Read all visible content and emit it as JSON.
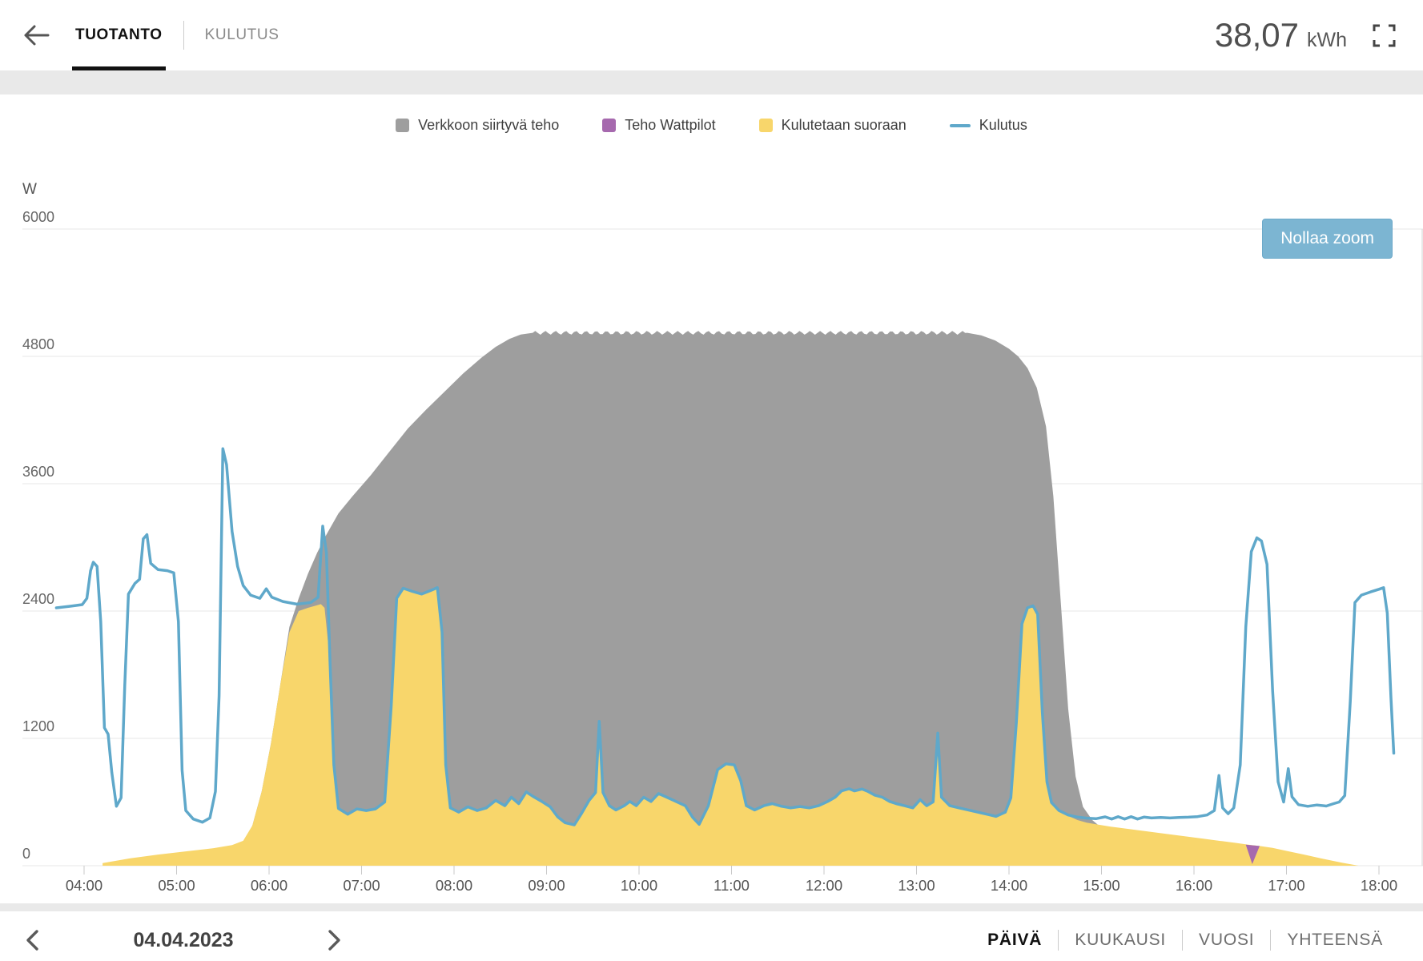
{
  "header": {
    "tabs": [
      {
        "label": "TUOTANTO",
        "active": true
      },
      {
        "label": "KULUTUS",
        "active": false
      }
    ],
    "energy_value": "38,07",
    "energy_unit": "kWh"
  },
  "legend": [
    {
      "label": "Verkkoon siirtyvä teho",
      "color": "#9e9e9e",
      "marker": "square"
    },
    {
      "label": "Teho Wattpilot",
      "color": "#a669ae",
      "marker": "square"
    },
    {
      "label": "Kulutetaan suoraan",
      "color": "#f8d66b",
      "marker": "square"
    },
    {
      "label": "Kulutus",
      "color": "#5fa8ca",
      "marker": "line"
    }
  ],
  "reset_zoom_label": "Nollaa zoom",
  "footer": {
    "date": "04.04.2023",
    "views": [
      {
        "label": "PÄIVÄ",
        "active": true
      },
      {
        "label": "KUUKAUSI",
        "active": false
      },
      {
        "label": "VUOSI",
        "active": false
      },
      {
        "label": "YHTEENSÄ",
        "active": false
      }
    ]
  },
  "chart_data": {
    "type": "area",
    "title": "",
    "unit": "W",
    "ylabel": "W",
    "ylim": [
      0,
      6000
    ],
    "y_ticks": [
      0,
      1200,
      2400,
      3600,
      4800,
      6000
    ],
    "x_hours": [
      4,
      5,
      6,
      7,
      8,
      9,
      10,
      11,
      12,
      13,
      14,
      15,
      16,
      17,
      18
    ],
    "x_tick_labels": [
      "04:00",
      "05:00",
      "06:00",
      "07:00",
      "08:00",
      "09:00",
      "10:00",
      "11:00",
      "12:00",
      "13:00",
      "14:00",
      "15:00",
      "16:00",
      "17:00",
      "18:00"
    ],
    "xlim": [
      3.65,
      18.45
    ],
    "grid": true,
    "legend_position": "top-center",
    "cap_ripple": {
      "from": 8.85,
      "to": 13.55,
      "amplitude": 18,
      "period": 0.11,
      "base": 5022
    },
    "series": {
      "production_total": {
        "label": "Verkkoon siirtyvä teho",
        "color": "#9e9e9e",
        "note": "stack top = total PV production; gray band is power exported to grid, drawn above direct use",
        "points": [
          [
            5.72,
            120
          ],
          [
            5.82,
            380
          ],
          [
            5.92,
            700
          ],
          [
            6.02,
            1150
          ],
          [
            6.12,
            1700
          ],
          [
            6.22,
            2250
          ],
          [
            6.32,
            2520
          ],
          [
            6.42,
            2750
          ],
          [
            6.52,
            2950
          ],
          [
            6.62,
            3120
          ],
          [
            6.75,
            3320
          ],
          [
            6.9,
            3480
          ],
          [
            7.1,
            3680
          ],
          [
            7.3,
            3900
          ],
          [
            7.5,
            4120
          ],
          [
            7.7,
            4300
          ],
          [
            7.9,
            4470
          ],
          [
            8.1,
            4640
          ],
          [
            8.3,
            4790
          ],
          [
            8.45,
            4890
          ],
          [
            8.6,
            4965
          ],
          [
            8.72,
            5005
          ],
          [
            8.85,
            5022
          ],
          [
            13.55,
            5022
          ],
          [
            13.7,
            4998
          ],
          [
            13.85,
            4950
          ],
          [
            14.0,
            4872
          ],
          [
            14.1,
            4800
          ],
          [
            14.2,
            4690
          ],
          [
            14.3,
            4505
          ],
          [
            14.4,
            4140
          ],
          [
            14.48,
            3480
          ],
          [
            14.56,
            2480
          ],
          [
            14.64,
            1480
          ],
          [
            14.72,
            840
          ],
          [
            14.8,
            555
          ],
          [
            14.9,
            430
          ],
          [
            15.0,
            358
          ]
        ]
      },
      "wattpilot": {
        "label": "Teho Wattpilot",
        "color": "#a669ae",
        "points": [
          [
            16.56,
            198
          ],
          [
            16.63,
            15
          ],
          [
            16.71,
            186
          ]
        ]
      },
      "direct_use": {
        "label": "Kulutetaan suoraan",
        "color": "#f8d66b",
        "points_head": [
          [
            4.2,
            25
          ],
          [
            4.5,
            70
          ],
          [
            4.8,
            105
          ],
          [
            5.1,
            135
          ],
          [
            5.4,
            165
          ],
          [
            5.6,
            195
          ],
          [
            5.72,
            235
          ],
          [
            5.82,
            380
          ],
          [
            5.92,
            700
          ],
          [
            6.02,
            1150
          ],
          [
            6.12,
            1700
          ],
          [
            6.22,
            2200
          ],
          [
            6.32,
            2400
          ],
          [
            6.42,
            2430
          ],
          [
            6.5,
            2450
          ],
          [
            6.56,
            2465
          ],
          [
            6.6,
            2430
          ],
          [
            6.65,
            2000
          ],
          [
            6.7,
            950
          ],
          [
            6.75,
            540
          ]
        ],
        "follows_consumption": [
          6.76,
          14.47
        ],
        "points_tail": [
          [
            14.54,
            520
          ],
          [
            14.64,
            470
          ],
          [
            14.74,
            430
          ],
          [
            14.84,
            405
          ],
          [
            14.94,
            390
          ],
          [
            15.1,
            368
          ],
          [
            15.3,
            345
          ],
          [
            15.5,
            322
          ],
          [
            15.7,
            300
          ],
          [
            15.9,
            278
          ],
          [
            16.1,
            255
          ],
          [
            16.3,
            232
          ],
          [
            16.45,
            215
          ],
          [
            16.55,
            203
          ],
          [
            16.63,
            193
          ],
          [
            16.71,
            186
          ],
          [
            16.85,
            168
          ],
          [
            17.0,
            140
          ],
          [
            17.2,
            103
          ],
          [
            17.4,
            64
          ],
          [
            17.6,
            28
          ],
          [
            17.78,
            0
          ]
        ]
      },
      "consumption": {
        "label": "Kulutus",
        "color": "#5fa8ca",
        "points": [
          [
            3.7,
            2430
          ],
          [
            3.85,
            2445
          ],
          [
            3.98,
            2460
          ],
          [
            4.03,
            2520
          ],
          [
            4.07,
            2780
          ],
          [
            4.1,
            2860
          ],
          [
            4.14,
            2820
          ],
          [
            4.18,
            2300
          ],
          [
            4.22,
            1300
          ],
          [
            4.26,
            1240
          ],
          [
            4.3,
            880
          ],
          [
            4.35,
            560
          ],
          [
            4.4,
            640
          ],
          [
            4.44,
            1700
          ],
          [
            4.48,
            2560
          ],
          [
            4.55,
            2660
          ],
          [
            4.6,
            2700
          ],
          [
            4.64,
            3080
          ],
          [
            4.68,
            3120
          ],
          [
            4.72,
            2850
          ],
          [
            4.8,
            2790
          ],
          [
            4.9,
            2780
          ],
          [
            4.97,
            2760
          ],
          [
            5.02,
            2300
          ],
          [
            5.06,
            900
          ],
          [
            5.1,
            520
          ],
          [
            5.18,
            440
          ],
          [
            5.28,
            410
          ],
          [
            5.36,
            450
          ],
          [
            5.42,
            700
          ],
          [
            5.46,
            1600
          ],
          [
            5.5,
            3930
          ],
          [
            5.54,
            3780
          ],
          [
            5.6,
            3150
          ],
          [
            5.66,
            2820
          ],
          [
            5.72,
            2640
          ],
          [
            5.8,
            2550
          ],
          [
            5.9,
            2520
          ],
          [
            5.97,
            2610
          ],
          [
            6.03,
            2530
          ],
          [
            6.15,
            2490
          ],
          [
            6.3,
            2465
          ],
          [
            6.45,
            2480
          ],
          [
            6.53,
            2530
          ],
          [
            6.58,
            3200
          ],
          [
            6.62,
            2950
          ],
          [
            6.66,
            1900
          ],
          [
            6.7,
            950
          ],
          [
            6.75,
            540
          ],
          [
            6.85,
            485
          ],
          [
            6.95,
            535
          ],
          [
            7.05,
            520
          ],
          [
            7.15,
            535
          ],
          [
            7.25,
            600
          ],
          [
            7.32,
            1500
          ],
          [
            7.38,
            2520
          ],
          [
            7.45,
            2615
          ],
          [
            7.55,
            2585
          ],
          [
            7.65,
            2560
          ],
          [
            7.75,
            2595
          ],
          [
            7.82,
            2620
          ],
          [
            7.87,
            2200
          ],
          [
            7.91,
            950
          ],
          [
            7.96,
            545
          ],
          [
            8.05,
            505
          ],
          [
            8.15,
            555
          ],
          [
            8.25,
            520
          ],
          [
            8.35,
            545
          ],
          [
            8.45,
            615
          ],
          [
            8.55,
            565
          ],
          [
            8.62,
            645
          ],
          [
            8.7,
            585
          ],
          [
            8.78,
            695
          ],
          [
            8.85,
            655
          ],
          [
            8.94,
            610
          ],
          [
            9.04,
            555
          ],
          [
            9.12,
            460
          ],
          [
            9.2,
            405
          ],
          [
            9.3,
            385
          ],
          [
            9.38,
            495
          ],
          [
            9.46,
            615
          ],
          [
            9.53,
            690
          ],
          [
            9.57,
            1360
          ],
          [
            9.61,
            690
          ],
          [
            9.68,
            565
          ],
          [
            9.75,
            525
          ],
          [
            9.84,
            565
          ],
          [
            9.9,
            605
          ],
          [
            9.97,
            565
          ],
          [
            10.05,
            645
          ],
          [
            10.13,
            605
          ],
          [
            10.21,
            680
          ],
          [
            10.3,
            645
          ],
          [
            10.4,
            605
          ],
          [
            10.5,
            565
          ],
          [
            10.58,
            455
          ],
          [
            10.65,
            390
          ],
          [
            10.75,
            565
          ],
          [
            10.85,
            905
          ],
          [
            10.94,
            960
          ],
          [
            11.03,
            950
          ],
          [
            11.1,
            800
          ],
          [
            11.16,
            565
          ],
          [
            11.25,
            525
          ],
          [
            11.35,
            565
          ],
          [
            11.44,
            585
          ],
          [
            11.54,
            560
          ],
          [
            11.64,
            545
          ],
          [
            11.74,
            558
          ],
          [
            11.84,
            545
          ],
          [
            11.94,
            565
          ],
          [
            12.04,
            605
          ],
          [
            12.12,
            645
          ],
          [
            12.19,
            705
          ],
          [
            12.27,
            725
          ],
          [
            12.33,
            705
          ],
          [
            12.41,
            722
          ],
          [
            12.47,
            702
          ],
          [
            12.55,
            665
          ],
          [
            12.63,
            645
          ],
          [
            12.71,
            605
          ],
          [
            12.78,
            585
          ],
          [
            12.87,
            565
          ],
          [
            12.96,
            545
          ],
          [
            13.04,
            622
          ],
          [
            13.11,
            565
          ],
          [
            13.18,
            602
          ],
          [
            13.23,
            1250
          ],
          [
            13.27,
            645
          ],
          [
            13.36,
            565
          ],
          [
            13.46,
            545
          ],
          [
            13.56,
            525
          ],
          [
            13.66,
            505
          ],
          [
            13.76,
            485
          ],
          [
            13.86,
            465
          ],
          [
            13.96,
            505
          ],
          [
            14.02,
            640
          ],
          [
            14.08,
            1350
          ],
          [
            14.14,
            2280
          ],
          [
            14.2,
            2430
          ],
          [
            14.26,
            2450
          ],
          [
            14.31,
            2370
          ],
          [
            14.36,
            1450
          ],
          [
            14.41,
            790
          ],
          [
            14.46,
            595
          ],
          [
            14.54,
            520
          ],
          [
            14.64,
            478
          ],
          [
            14.74,
            458
          ],
          [
            14.84,
            448
          ],
          [
            14.94,
            443
          ],
          [
            15.04,
            460
          ],
          [
            15.11,
            440
          ],
          [
            15.18,
            462
          ],
          [
            15.25,
            440
          ],
          [
            15.32,
            462
          ],
          [
            15.39,
            440
          ],
          [
            15.46,
            458
          ],
          [
            15.54,
            450
          ],
          [
            15.64,
            454
          ],
          [
            15.74,
            450
          ],
          [
            15.84,
            454
          ],
          [
            15.94,
            457
          ],
          [
            16.04,
            463
          ],
          [
            16.14,
            478
          ],
          [
            16.22,
            520
          ],
          [
            16.27,
            850
          ],
          [
            16.31,
            545
          ],
          [
            16.37,
            490
          ],
          [
            16.43,
            545
          ],
          [
            16.5,
            950
          ],
          [
            16.56,
            2250
          ],
          [
            16.62,
            2960
          ],
          [
            16.68,
            3090
          ],
          [
            16.73,
            3060
          ],
          [
            16.79,
            2840
          ],
          [
            16.85,
            1650
          ],
          [
            16.91,
            790
          ],
          [
            16.97,
            600
          ],
          [
            17.02,
            915
          ],
          [
            17.06,
            650
          ],
          [
            17.13,
            575
          ],
          [
            17.23,
            560
          ],
          [
            17.33,
            572
          ],
          [
            17.43,
            562
          ],
          [
            17.51,
            585
          ],
          [
            17.57,
            600
          ],
          [
            17.63,
            660
          ],
          [
            17.69,
            1550
          ],
          [
            17.74,
            2480
          ],
          [
            17.81,
            2550
          ],
          [
            17.91,
            2580
          ],
          [
            18.0,
            2605
          ],
          [
            18.05,
            2620
          ],
          [
            18.09,
            2380
          ],
          [
            18.13,
            1580
          ],
          [
            18.16,
            1060
          ]
        ]
      }
    }
  }
}
